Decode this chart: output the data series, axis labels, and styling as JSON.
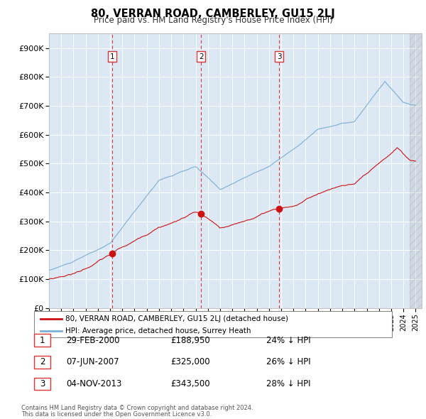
{
  "title": "80, VERRAN ROAD, CAMBERLEY, GU15 2LJ",
  "subtitle": "Price paid vs. HM Land Registry's House Price Index (HPI)",
  "ylabel_ticks": [
    "£0",
    "£100K",
    "£200K",
    "£300K",
    "£400K",
    "£500K",
    "£600K",
    "£700K",
    "£800K",
    "£900K"
  ],
  "ytick_values": [
    0,
    100000,
    200000,
    300000,
    400000,
    500000,
    600000,
    700000,
    800000,
    900000
  ],
  "ylim": [
    0,
    950000
  ],
  "xlim_start": 1995.0,
  "xlim_end": 2025.5,
  "hpi_color": "#7bafd4",
  "price_color": "#cc1111",
  "vline_color": "#dd3333",
  "purchases": [
    {
      "date": 2000.17,
      "price": 188950,
      "label": "1",
      "date_str": "29-FEB-2000",
      "price_str": "£188,950",
      "hpi_str": "24% ↓ HPI"
    },
    {
      "date": 2007.44,
      "price": 325000,
      "label": "2",
      "date_str": "07-JUN-2007",
      "price_str": "£325,000",
      "hpi_str": "26% ↓ HPI"
    },
    {
      "date": 2013.84,
      "price": 343500,
      "label": "3",
      "date_str": "04-NOV-2013",
      "price_str": "£343,500",
      "hpi_str": "28% ↓ HPI"
    }
  ],
  "legend_label_red": "80, VERRAN ROAD, CAMBERLEY, GU15 2LJ (detached house)",
  "legend_label_blue": "HPI: Average price, detached house, Surrey Heath",
  "footer1": "Contains HM Land Registry data © Crown copyright and database right 2024.",
  "footer2": "This data is licensed under the Open Government Licence v3.0.",
  "background_color": "#ffffff",
  "plot_bg_color": "#dce9f5"
}
